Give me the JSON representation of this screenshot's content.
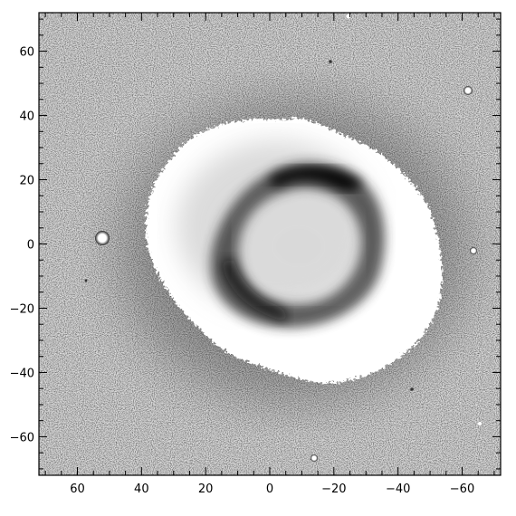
{
  "image": {
    "subject": "nebula",
    "colormap": "inverted-grayscale"
  },
  "axes": {
    "x": {
      "ticks": [
        60,
        40,
        20,
        0,
        -20,
        -40,
        -60
      ],
      "labels": [
        "60",
        "40",
        "20",
        "0",
        "−20",
        "−40",
        "−60"
      ],
      "range": [
        72,
        -72
      ],
      "direction": "decreasing-to-right"
    },
    "y": {
      "ticks": [
        60,
        40,
        20,
        0,
        -20,
        -40,
        -60
      ],
      "labels": [
        "60",
        "40",
        "20",
        "0",
        "−20",
        "−40",
        "−60"
      ],
      "range": [
        -72,
        72
      ]
    }
  },
  "colors": {
    "frame": "#000000",
    "background_noise": "#d8d8d8",
    "halo": "#a8a8a8",
    "nebula_shell": "#ffffff",
    "ring": "#1a1a1a"
  }
}
